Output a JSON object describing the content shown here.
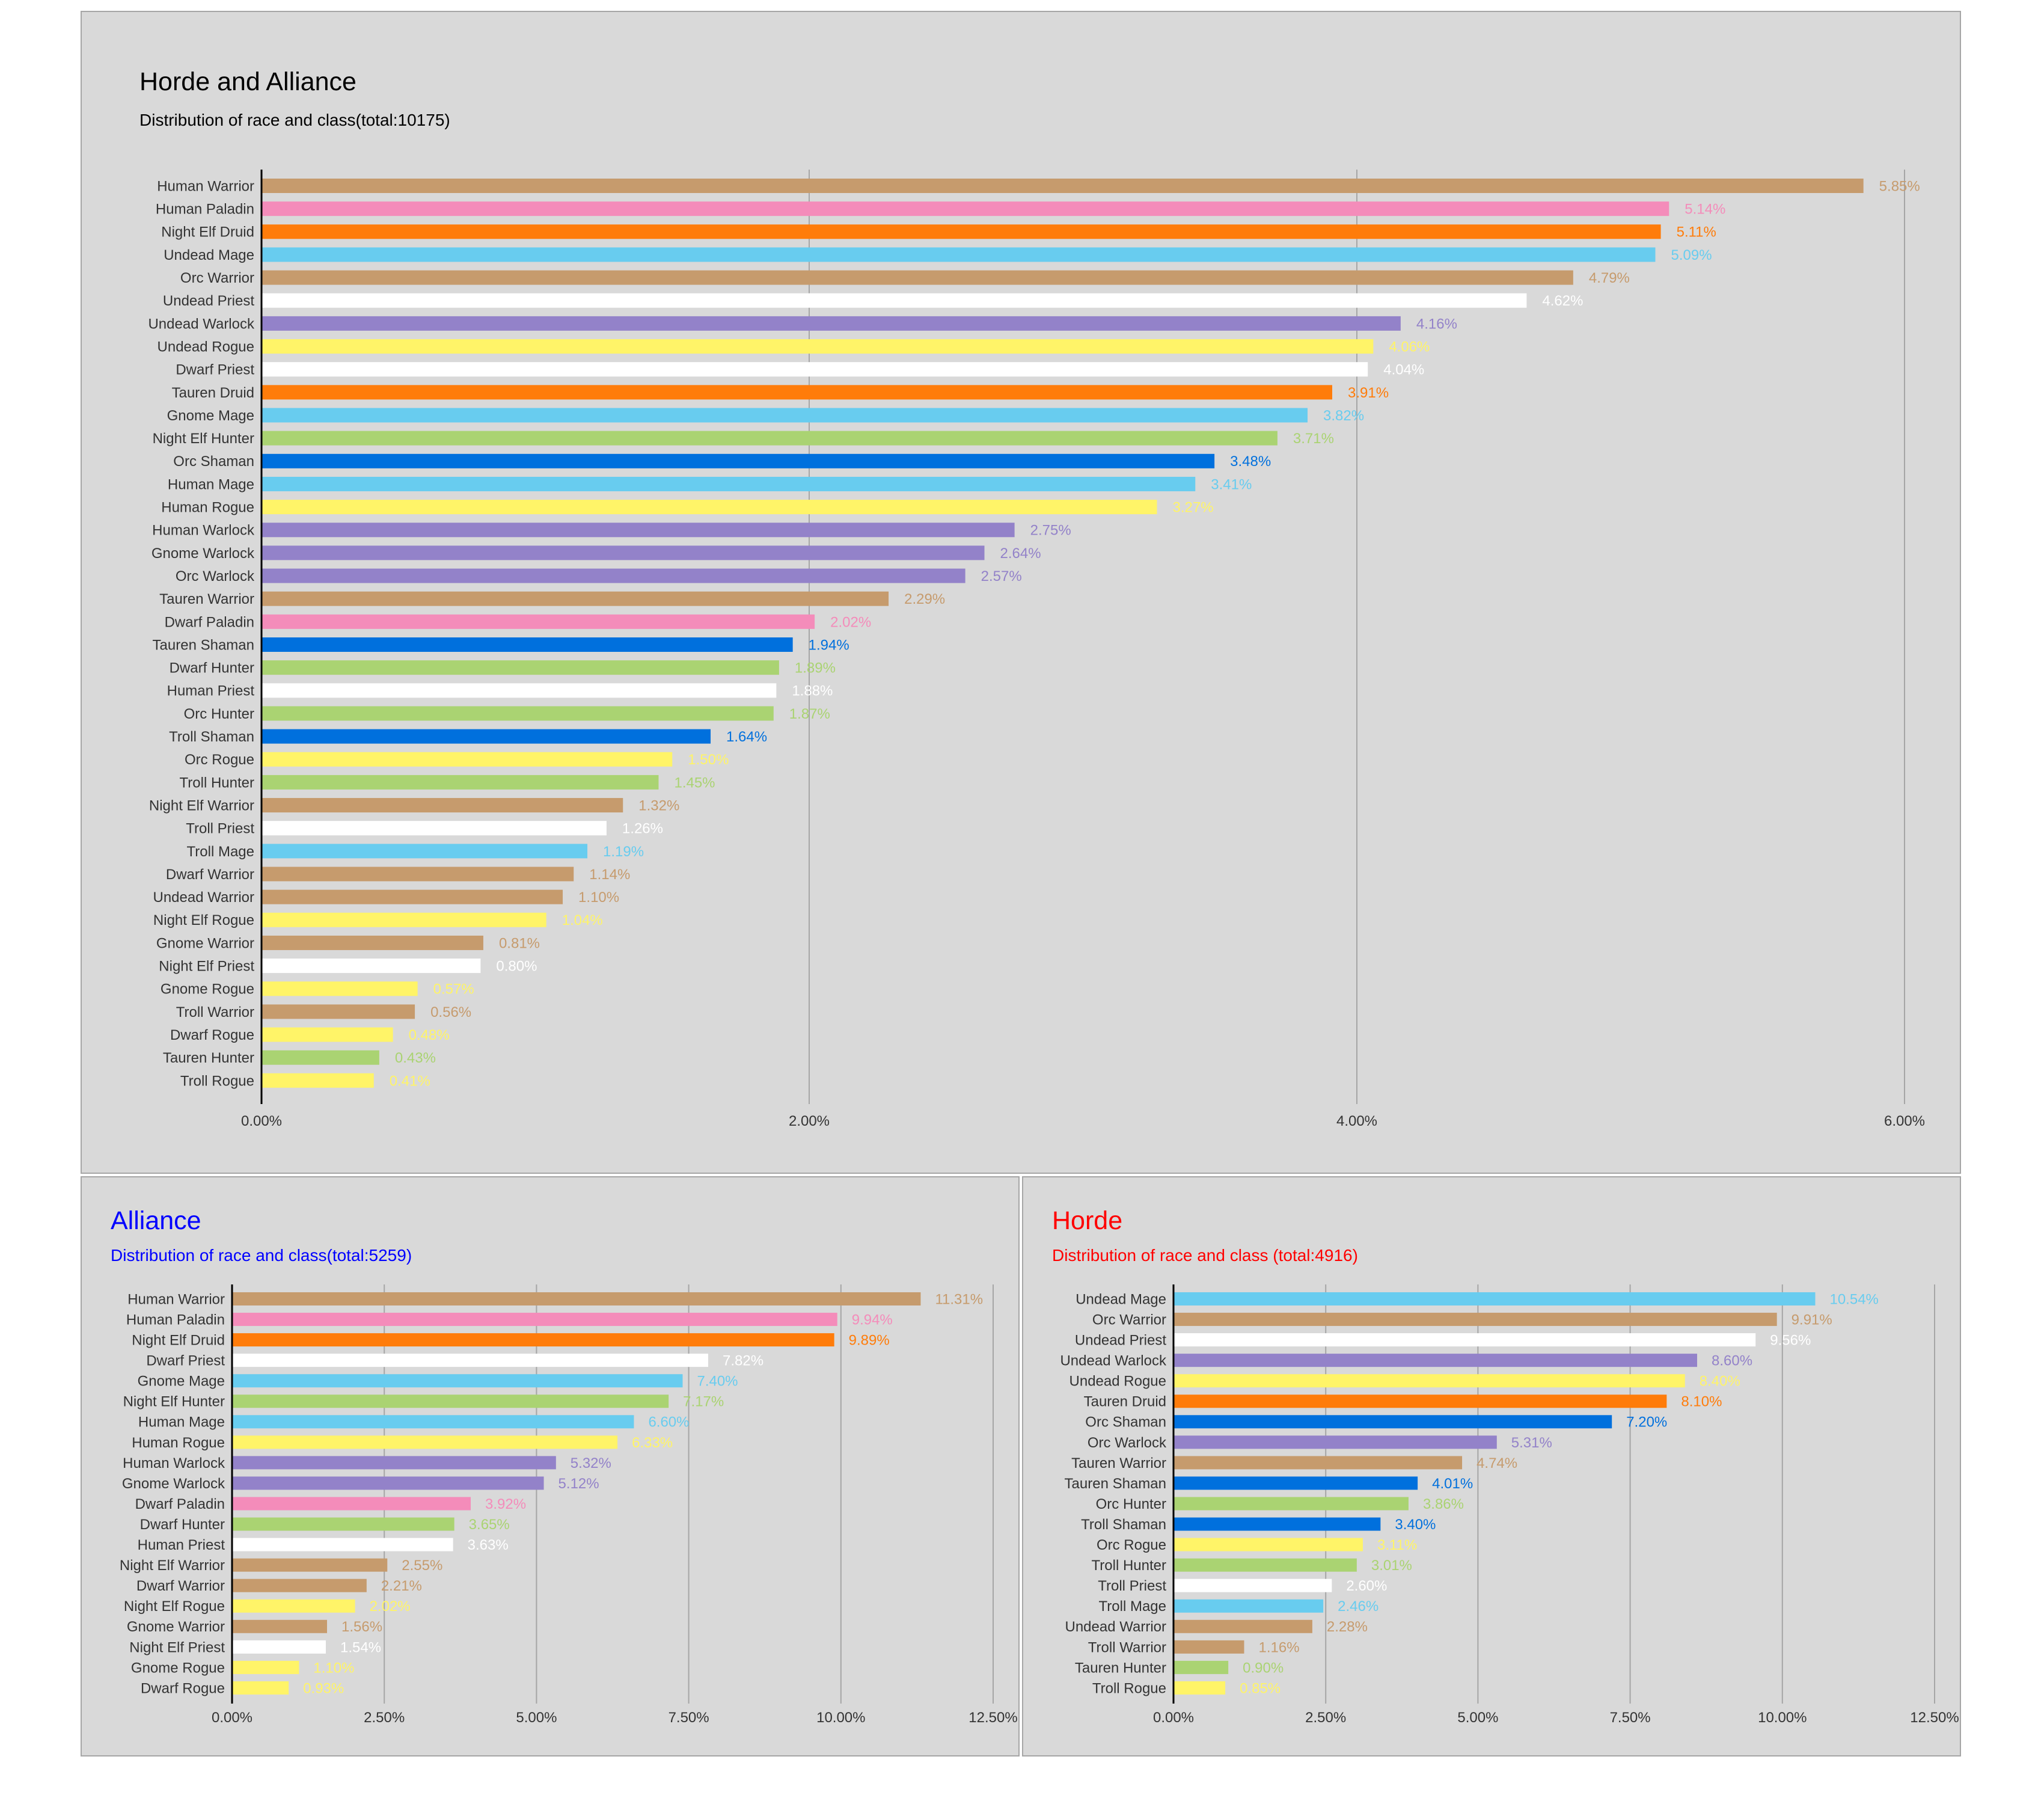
{
  "colors": {
    "warrior": "#c69b6d",
    "paladin": "#f48cba",
    "druid": "#ff7c0a",
    "mage": "#68ccef",
    "priest": "#ffffff",
    "warlock": "#9382c9",
    "rogue": "#fff468",
    "hunter": "#aad372",
    "shaman": "#0070dd",
    "panel_bg": "#d9d9d9",
    "grid": "#a6a6a6",
    "axis": "#000000",
    "alliance_title": "#0000ff",
    "horde_title": "#ff0000"
  },
  "chart_data": [
    {
      "type": "bar",
      "orientation": "horizontal",
      "title": "Horde and Alliance",
      "subtitle": "Distribution of race and class(total:10175)",
      "xlim": [
        0,
        6
      ],
      "xticks": [
        0,
        2,
        4,
        6
      ],
      "xtick_labels": [
        "0.00%",
        "2.00%",
        "4.00%",
        "6.00%"
      ],
      "grid": true,
      "categories": [
        "Human Warrior",
        "Human Paladin",
        "Night Elf Druid",
        "Undead Mage",
        "Orc Warrior",
        "Undead Priest",
        "Undead Warlock",
        "Undead Rogue",
        "Dwarf Priest",
        "Tauren Druid",
        "Gnome Mage",
        "Night Elf Hunter",
        "Orc Shaman",
        "Human Mage",
        "Human Rogue",
        "Human Warlock",
        "Gnome Warlock",
        "Orc Warlock",
        "Tauren Warrior",
        "Dwarf Paladin",
        "Tauren Shaman",
        "Dwarf Hunter",
        "Human Priest",
        "Orc Hunter",
        "Troll Shaman",
        "Orc Rogue",
        "Troll Hunter",
        "Night Elf Warrior",
        "Troll Priest",
        "Troll Mage",
        "Dwarf Warrior",
        "Undead Warrior",
        "Night Elf Rogue",
        "Gnome Warrior",
        "Night Elf Priest",
        "Gnome Rogue",
        "Troll Warrior",
        "Dwarf Rogue",
        "Tauren Hunter",
        "Troll Rogue"
      ],
      "values": [
        5.85,
        5.14,
        5.11,
        5.09,
        4.79,
        4.62,
        4.16,
        4.06,
        4.04,
        3.91,
        3.82,
        3.71,
        3.48,
        3.41,
        3.27,
        2.75,
        2.64,
        2.57,
        2.29,
        2.02,
        1.94,
        1.89,
        1.88,
        1.87,
        1.64,
        1.5,
        1.45,
        1.32,
        1.26,
        1.19,
        1.14,
        1.1,
        1.04,
        0.81,
        0.8,
        0.57,
        0.56,
        0.48,
        0.43,
        0.41
      ],
      "value_labels": [
        "5.85%",
        "5.14%",
        "5.11%",
        "5.09%",
        "4.79%",
        "4.62%",
        "4.16%",
        "4.06%",
        "4.04%",
        "3.91%",
        "3.82%",
        "3.71%",
        "3.48%",
        "3.41%",
        "3.27%",
        "2.75%",
        "2.64%",
        "2.57%",
        "2.29%",
        "2.02%",
        "1.94%",
        "1.89%",
        "1.88%",
        "1.87%",
        "1.64%",
        "1.50%",
        "1.45%",
        "1.32%",
        "1.26%",
        "1.19%",
        "1.14%",
        "1.10%",
        "1.04%",
        "0.81%",
        "0.80%",
        "0.57%",
        "0.56%",
        "0.48%",
        "0.43%",
        "0.41%"
      ],
      "classes": [
        "warrior",
        "paladin",
        "druid",
        "mage",
        "warrior",
        "priest",
        "warlock",
        "rogue",
        "priest",
        "druid",
        "mage",
        "hunter",
        "shaman",
        "mage",
        "rogue",
        "warlock",
        "warlock",
        "warlock",
        "warrior",
        "paladin",
        "shaman",
        "hunter",
        "priest",
        "hunter",
        "shaman",
        "rogue",
        "hunter",
        "warrior",
        "priest",
        "mage",
        "warrior",
        "warrior",
        "rogue",
        "warrior",
        "priest",
        "rogue",
        "warrior",
        "rogue",
        "hunter",
        "rogue"
      ]
    },
    {
      "type": "bar",
      "orientation": "horizontal",
      "title": "Alliance",
      "subtitle": "Distribution of race and class(total:5259)",
      "xlim": [
        0,
        12.5
      ],
      "xticks": [
        0,
        2.5,
        5,
        7.5,
        10,
        12.5
      ],
      "xtick_labels": [
        "0.00%",
        "2.50%",
        "5.00%",
        "7.50%",
        "10.00%",
        "12.50%"
      ],
      "grid": true,
      "categories": [
        "Human Warrior",
        "Human Paladin",
        "Night Elf Druid",
        "Dwarf Priest",
        "Gnome Mage",
        "Night Elf Hunter",
        "Human Mage",
        "Human Rogue",
        "Human Warlock",
        "Gnome Warlock",
        "Dwarf Paladin",
        "Dwarf Hunter",
        "Human Priest",
        "Night Elf Warrior",
        "Dwarf Warrior",
        "Night Elf Rogue",
        "Gnome Warrior",
        "Night Elf Priest",
        "Gnome Rogue",
        "Dwarf Rogue"
      ],
      "values": [
        11.31,
        9.94,
        9.89,
        7.82,
        7.4,
        7.17,
        6.6,
        6.33,
        5.32,
        5.12,
        3.92,
        3.65,
        3.63,
        2.55,
        2.21,
        2.02,
        1.56,
        1.54,
        1.1,
        0.93
      ],
      "value_labels": [
        "11.31%",
        "9.94%",
        "9.89%",
        "7.82%",
        "7.40%",
        "7.17%",
        "6.60%",
        "6.33%",
        "5.32%",
        "5.12%",
        "3.92%",
        "3.65%",
        "3.63%",
        "2.55%",
        "2.21%",
        "2.02%",
        "1.56%",
        "1.54%",
        "1.10%",
        "0.93%"
      ],
      "classes": [
        "warrior",
        "paladin",
        "druid",
        "priest",
        "mage",
        "hunter",
        "mage",
        "rogue",
        "warlock",
        "warlock",
        "paladin",
        "hunter",
        "priest",
        "warrior",
        "warrior",
        "rogue",
        "warrior",
        "priest",
        "rogue",
        "rogue"
      ]
    },
    {
      "type": "bar",
      "orientation": "horizontal",
      "title": "Horde",
      "subtitle": "Distribution of race and class (total:4916)",
      "xlim": [
        0,
        12.5
      ],
      "xticks": [
        0,
        2.5,
        5,
        7.5,
        10,
        12.5
      ],
      "xtick_labels": [
        "0.00%",
        "2.50%",
        "5.00%",
        "7.50%",
        "10.00%",
        "12.50%"
      ],
      "grid": true,
      "categories": [
        "Undead Mage",
        "Orc Warrior",
        "Undead Priest",
        "Undead Warlock",
        "Undead Rogue",
        "Tauren Druid",
        "Orc Shaman",
        "Orc Warlock",
        "Tauren Warrior",
        "Tauren Shaman",
        "Orc Hunter",
        "Troll Shaman",
        "Orc Rogue",
        "Troll Hunter",
        "Troll Priest",
        "Troll Mage",
        "Undead Warrior",
        "Troll Warrior",
        "Tauren Hunter",
        "Troll Rogue"
      ],
      "values": [
        10.54,
        9.91,
        9.56,
        8.6,
        8.4,
        8.1,
        7.2,
        5.31,
        4.74,
        4.01,
        3.86,
        3.4,
        3.11,
        3.01,
        2.6,
        2.46,
        2.28,
        1.16,
        0.9,
        0.85
      ],
      "value_labels": [
        "10.54%",
        "9.91%",
        "9.56%",
        "8.60%",
        "8.40%",
        "8.10%",
        "7.20%",
        "5.31%",
        "4.74%",
        "4.01%",
        "3.86%",
        "3.40%",
        "3.11%",
        "3.01%",
        "2.60%",
        "2.46%",
        "2.28%",
        "1.16%",
        "0.90%",
        "0.85%"
      ],
      "classes": [
        "mage",
        "warrior",
        "priest",
        "warlock",
        "rogue",
        "druid",
        "shaman",
        "warlock",
        "warrior",
        "shaman",
        "hunter",
        "shaman",
        "rogue",
        "hunter",
        "priest",
        "mage",
        "warrior",
        "warrior",
        "hunter",
        "rogue"
      ]
    }
  ]
}
